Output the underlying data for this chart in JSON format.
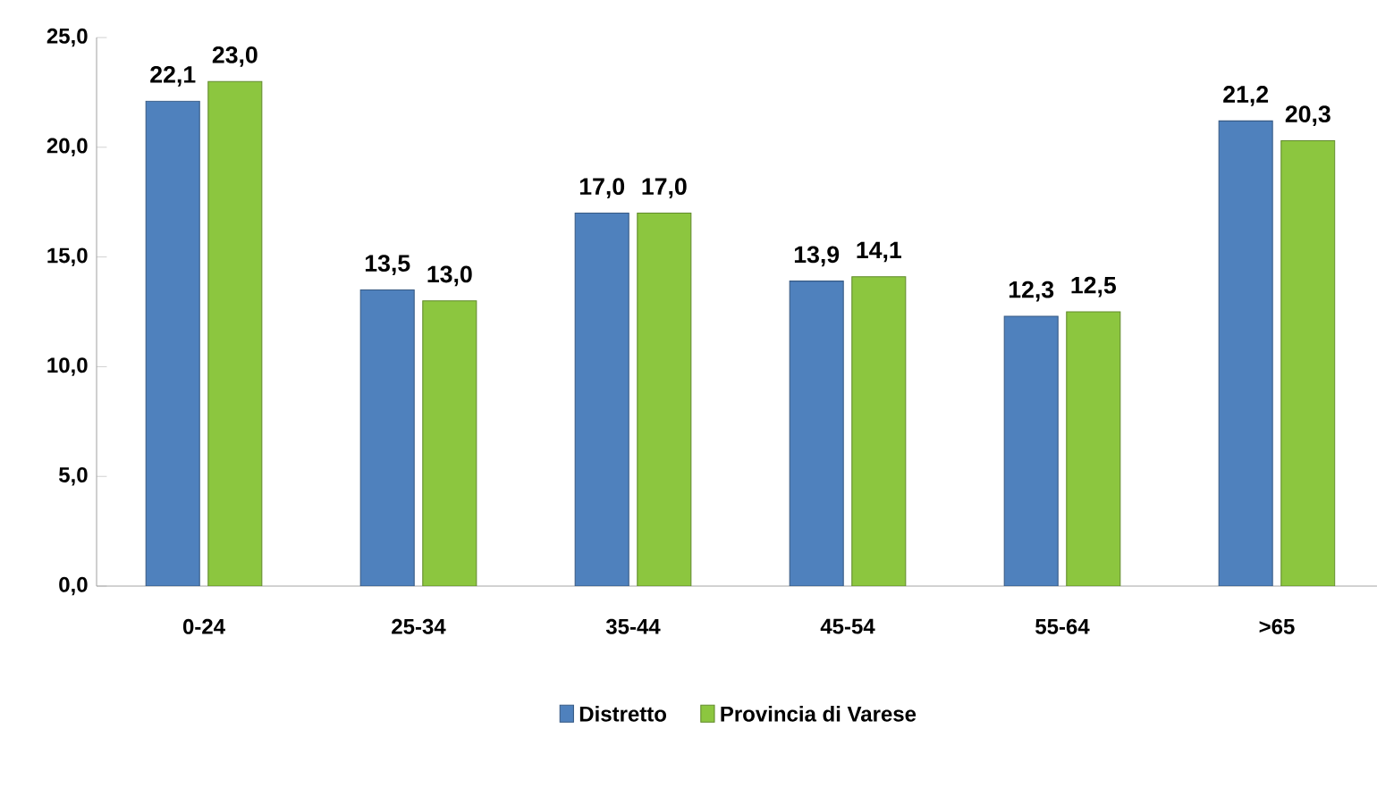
{
  "chart_data": {
    "type": "bar",
    "categories": [
      "0-24",
      "25-34",
      "35-44",
      "45-54",
      "55-64",
      ">65"
    ],
    "series": [
      {
        "name": "Distretto",
        "color": "#4f81bd",
        "values": [
          22.1,
          13.5,
          17.0,
          13.9,
          12.3,
          21.2
        ],
        "value_labels": [
          "22,1",
          "13,5",
          "17,0",
          "13,9",
          "12,3",
          "21,2"
        ]
      },
      {
        "name": "Provincia di Varese",
        "color": "#8cc63f",
        "values": [
          23.0,
          13.0,
          17.0,
          14.1,
          12.5,
          20.3
        ],
        "value_labels": [
          "23,0",
          "13,0",
          "17,0",
          "14,1",
          "12,5",
          "20,3"
        ]
      }
    ],
    "ylim": [
      0,
      25
    ],
    "yticks": [
      {
        "value": 0,
        "label": "0,0"
      },
      {
        "value": 5,
        "label": "5,0"
      },
      {
        "value": 10,
        "label": "10,0"
      },
      {
        "value": 15,
        "label": "15,0"
      },
      {
        "value": 20,
        "label": "20,0"
      },
      {
        "value": 25,
        "label": "25,0"
      }
    ],
    "grid": false,
    "legend": "bottom"
  }
}
